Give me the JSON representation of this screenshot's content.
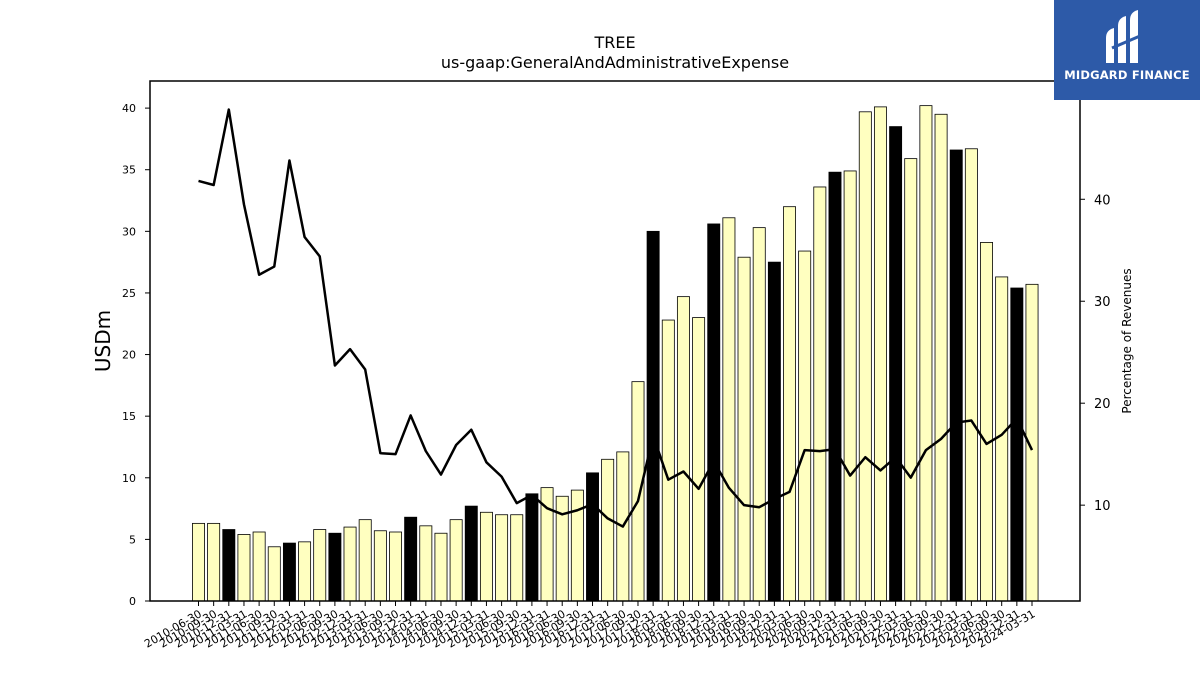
{
  "chart_data": {
    "type": "bar",
    "title": "TREE",
    "subtitle": "us-gaap:GeneralAndAdministrativeExpense",
    "ylabel": "USDm",
    "y2label": "Percentage of Revenues",
    "ylim": [
      0,
      42.2
    ],
    "y2lim": [
      0.6,
      51.6
    ],
    "yticks": [
      0,
      5,
      10,
      15,
      20,
      25,
      30,
      35,
      40
    ],
    "y2ticks": [
      10,
      20,
      30,
      40
    ],
    "categories": [
      "2010-06-30",
      "2010-09-30",
      "2010-12-31",
      "2011-03-31",
      "2011-06-30",
      "2011-09-30",
      "2011-12-31",
      "2012-03-31",
      "2012-06-30",
      "2012-09-30",
      "2012-12-31",
      "2013-03-31",
      "2013-06-30",
      "2013-09-30",
      "2013-12-31",
      "2014-03-31",
      "2014-06-30",
      "2014-09-30",
      "2014-12-31",
      "2015-03-31",
      "2015-06-30",
      "2015-09-30",
      "2015-12-31",
      "2016-03-31",
      "2016-06-30",
      "2016-09-30",
      "2016-12-31",
      "2017-03-31",
      "2017-06-30",
      "2017-09-30",
      "2017-12-31",
      "2018-03-31",
      "2018-06-30",
      "2018-09-30",
      "2018-12-31",
      "2019-03-31",
      "2019-06-30",
      "2019-09-30",
      "2019-12-31",
      "2020-03-31",
      "2020-06-30",
      "2020-09-30",
      "2020-12-31",
      "2021-03-31",
      "2021-06-30",
      "2021-09-30",
      "2021-12-31",
      "2022-03-31",
      "2022-06-30",
      "2022-09-30",
      "2022-12-31",
      "2023-03-31",
      "2023-06-30",
      "2023-09-30",
      "2023-12-31",
      "2024-03-31"
    ],
    "series": [
      {
        "type": "bar",
        "values": [
          6.3,
          6.3,
          5.8,
          5.4,
          5.6,
          4.4,
          4.7,
          4.8,
          5.8,
          5.5,
          6.0,
          6.6,
          5.7,
          5.6,
          6.8,
          6.1,
          5.5,
          6.6,
          7.7,
          7.2,
          7.0,
          7.0,
          8.7,
          9.2,
          8.5,
          9.0,
          10.4,
          11.5,
          12.1,
          17.8,
          30.0,
          22.8,
          24.7,
          23.0,
          30.6,
          31.1,
          27.9,
          30.3,
          27.5,
          32.0,
          28.4,
          33.6,
          34.8,
          34.9,
          39.7,
          40.1,
          38.5,
          35.9,
          40.2,
          39.5,
          36.6,
          36.7,
          29.1,
          26.3,
          25.4,
          25.7
        ],
        "highlight_color": "#000000",
        "color": "#ffffc0",
        "highlight_indices": [
          2,
          6,
          9,
          14,
          18,
          22,
          26,
          30,
          34,
          38,
          42,
          46,
          50,
          54
        ]
      },
      {
        "type": "line",
        "axis": "right",
        "color": "#000000",
        "values": [
          41.8,
          41.4,
          48.8,
          39.5,
          32.6,
          33.4,
          43.8,
          36.3,
          34.4,
          23.7,
          25.3,
          23.3,
          15.1,
          15.0,
          18.8,
          15.3,
          13.0,
          15.9,
          17.4,
          14.2,
          12.8,
          10.2,
          11.0,
          9.7,
          9.1,
          9.5,
          10.1,
          8.7,
          7.9,
          10.4,
          16.8,
          12.5,
          13.3,
          11.6,
          14.3,
          11.7,
          10.0,
          9.8,
          10.6,
          11.3,
          15.4,
          15.3,
          15.5,
          12.9,
          14.7,
          13.4,
          14.7,
          12.7,
          15.4,
          16.5,
          18.1,
          18.3,
          16.0,
          16.9,
          18.5,
          15.4
        ]
      }
    ],
    "grid": false,
    "legend": "none"
  },
  "logo": {
    "text": "MIDGARD FINANCE",
    "icon": "midgard-m-icon"
  }
}
